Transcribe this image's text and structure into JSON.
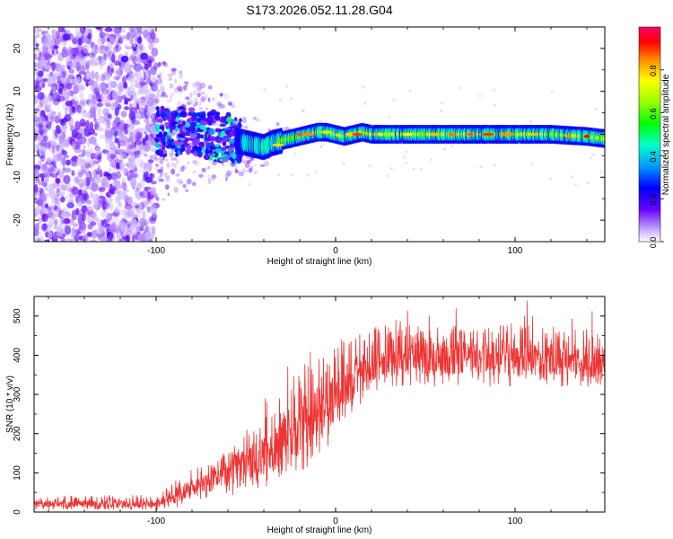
{
  "title": "S173.2026.052.11.28.G04",
  "chart_data": [
    {
      "type": "heatmap",
      "name": "spectrogram",
      "xlabel": "Height of straight line (km)",
      "ylabel": "Frequency (Hz)",
      "xlim": [
        -168,
        150
      ],
      "ylim": [
        -25,
        25
      ],
      "xticks": [
        -100,
        0,
        100
      ],
      "xtick_labels": [
        "-100",
        "0",
        "100"
      ],
      "yticks": [
        20,
        10,
        0,
        -10,
        -20
      ],
      "ytick_labels": [
        "20",
        "10",
        "0",
        "-10",
        "-20"
      ],
      "colorbar": {
        "label": "Normalized spectral amplitude",
        "range": [
          0.0,
          1.0
        ],
        "ticks": [
          0.0,
          0.2,
          0.4,
          0.6,
          0.8
        ],
        "tick_labels": [
          "0.0",
          "0.2",
          "0.4",
          "0.6",
          "0.8"
        ]
      },
      "features": {
        "noise_region_x": [
          -168,
          -100
        ],
        "signal_onset_x": -100,
        "carrier_track": {
          "x": [
            -100,
            -80,
            -60,
            -50,
            -45,
            -40,
            -35,
            -30,
            -25,
            -20,
            -15,
            -10,
            -5,
            0,
            5,
            10,
            15,
            20,
            40,
            60,
            80,
            100,
            120,
            140,
            150
          ],
          "freq": [
            1.0,
            0.5,
            -1.0,
            -2.0,
            -2.5,
            -3.0,
            -2.0,
            -1.5,
            -1.0,
            -0.5,
            0.0,
            0.5,
            0.5,
            0.0,
            -0.5,
            0.0,
            0.5,
            0.0,
            0.0,
            0.0,
            0.0,
            0.0,
            0.0,
            -0.5,
            -1.0
          ]
        }
      }
    },
    {
      "type": "line",
      "name": "snr",
      "xlabel": "Height of straight line (km)",
      "ylabel": "SNR (10 * v/v)",
      "xlim": [
        -168,
        150
      ],
      "ylim": [
        0,
        550
      ],
      "xticks": [
        -100,
        0,
        100
      ],
      "xtick_labels": [
        "-100",
        "0",
        "100"
      ],
      "yticks": [
        0,
        100,
        200,
        300,
        400,
        500
      ],
      "ytick_labels": [
        "0",
        "100",
        "200",
        "300",
        "400",
        "500"
      ],
      "color": "#ee3333",
      "envelope": {
        "x": [
          -168,
          -100,
          -90,
          -80,
          -70,
          -60,
          -50,
          -40,
          -30,
          -25,
          -20,
          -15,
          -10,
          -5,
          0,
          5,
          10,
          15,
          20,
          30,
          40,
          60,
          80,
          100,
          120,
          140,
          150
        ],
        "low": [
          5,
          5,
          10,
          20,
          30,
          40,
          50,
          60,
          70,
          80,
          90,
          110,
          140,
          160,
          180,
          220,
          250,
          280,
          300,
          320,
          320,
          320,
          320,
          320,
          320,
          320,
          320
        ],
        "mean": [
          20,
          20,
          40,
          60,
          80,
          100,
          120,
          140,
          170,
          190,
          210,
          240,
          260,
          290,
          300,
          320,
          330,
          350,
          360,
          380,
          390,
          390,
          390,
          390,
          385,
          380,
          370
        ],
        "high": [
          40,
          45,
          80,
          110,
          140,
          170,
          210,
          250,
          300,
          340,
          370,
          390,
          400,
          400,
          420,
          440,
          450,
          460,
          470,
          480,
          480,
          480,
          480,
          480,
          480,
          470,
          450
        ]
      }
    }
  ]
}
